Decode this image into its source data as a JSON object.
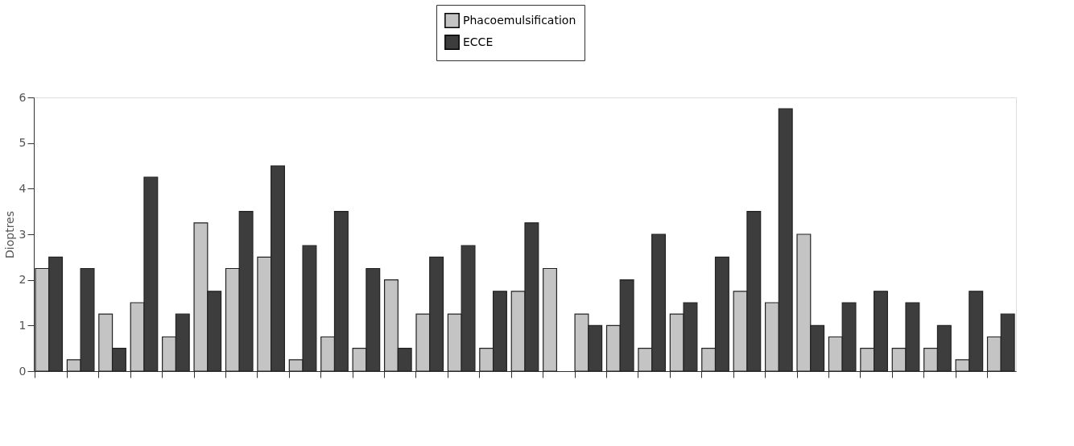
{
  "chart_data": {
    "type": "bar",
    "ylabel": "Dioptres",
    "categories": [
      null,
      null,
      null,
      null,
      null,
      null,
      null,
      null,
      null,
      null,
      null,
      null,
      null,
      null,
      null,
      null,
      null,
      null,
      null,
      null,
      null,
      null,
      null,
      null,
      null,
      null,
      null,
      null,
      null,
      null,
      null
    ],
    "series": [
      {
        "name": "Phacoemulsification",
        "color": "#c4c4c4",
        "values": [
          2.25,
          0.25,
          1.25,
          1.5,
          0.75,
          3.25,
          2.25,
          2.5,
          0.25,
          0.75,
          0.5,
          2.0,
          1.25,
          1.25,
          0.5,
          1.75,
          2.25,
          1.25,
          1.0,
          0.5,
          1.25,
          0.5,
          1.75,
          1.5,
          3.0,
          0.75,
          0.5,
          0.5,
          0.5,
          0.25,
          0.75
        ]
      },
      {
        "name": "ECCE",
        "color": "#3d3d3d",
        "values": [
          2.5,
          2.25,
          0.5,
          4.25,
          1.25,
          1.75,
          3.5,
          4.5,
          2.75,
          3.5,
          2.25,
          0.5,
          2.5,
          2.75,
          1.75,
          3.25,
          null,
          1.0,
          2.0,
          3.0,
          1.5,
          2.5,
          3.5,
          5.75,
          1.0,
          1.5,
          1.75,
          1.5,
          1.0,
          1.75,
          1.25
        ]
      }
    ],
    "ylim": [
      0,
      6
    ],
    "yticks": [
      0,
      1,
      2,
      3,
      4,
      5,
      6
    ],
    "grid": false,
    "legend": "top",
    "tick_labels": "y"
  }
}
